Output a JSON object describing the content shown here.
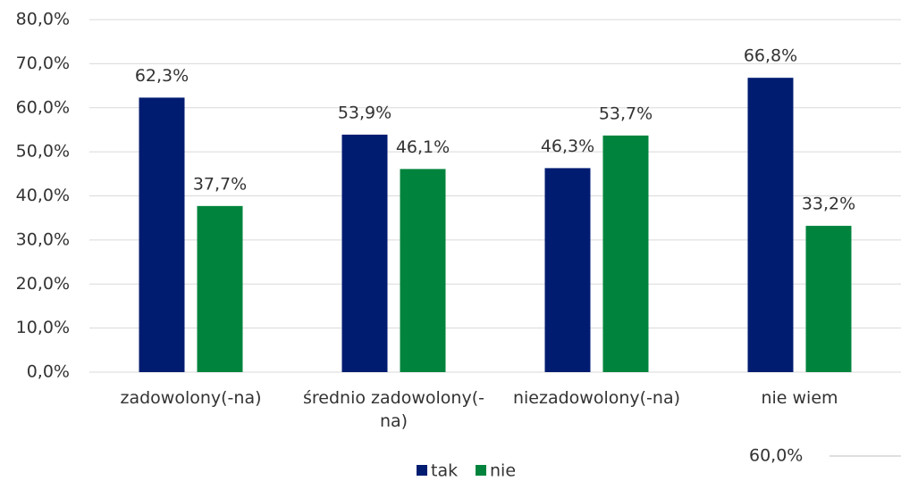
{
  "chart_data": {
    "type": "bar",
    "categories": [
      "zadowolony(-na)",
      "średnio zadowolony(-na)",
      "niezadowolony(-na)",
      "nie wiem"
    ],
    "series": [
      {
        "name": "tak",
        "color": "#001c71",
        "values": [
          62.3,
          53.9,
          46.3,
          66.8
        ],
        "value_labels": [
          "62,3%",
          "53,9%",
          "46,3%",
          "66,8%"
        ]
      },
      {
        "name": "nie",
        "color": "#00843d",
        "values": [
          37.7,
          46.1,
          53.7,
          33.2
        ],
        "value_labels": [
          "37,7%",
          "46,1%",
          "53,7%",
          "33,2%"
        ]
      }
    ],
    "ylim": [
      0,
      80
    ],
    "yticks": [
      {
        "value": 0,
        "label": "0,0%"
      },
      {
        "value": 10,
        "label": "10,0%"
      },
      {
        "value": 20,
        "label": "20,0%"
      },
      {
        "value": 30,
        "label": "30,0%"
      },
      {
        "value": 40,
        "label": "40,0%"
      },
      {
        "value": 50,
        "label": "50,0%"
      },
      {
        "value": 60,
        "label": "60,0%"
      },
      {
        "value": 70,
        "label": "70,0%"
      },
      {
        "value": 80,
        "label": "80,0%"
      }
    ],
    "grid": true,
    "legend": "bottom",
    "annotation": "60,0%"
  }
}
